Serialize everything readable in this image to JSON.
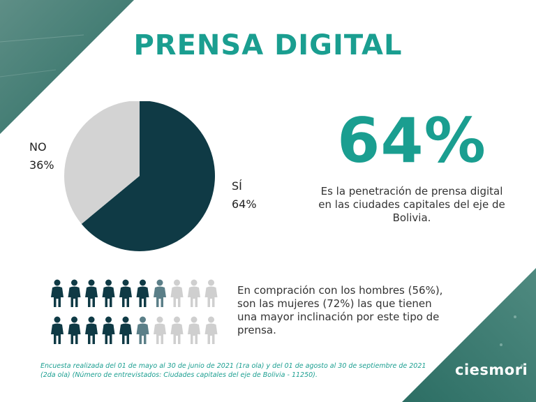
{
  "title": "PRENSA DIGITAL",
  "colors": {
    "accent": "#1a9e90",
    "dark": "#0f3a45",
    "light": "#cfcfcf",
    "mid": "#5b7f88",
    "corner": "#2c6e64"
  },
  "chart_data": {
    "type": "pie",
    "slices": [
      {
        "label": "SÍ",
        "value": 64,
        "value_label": "64%",
        "color": "#0f3a45"
      },
      {
        "label": "NO",
        "value": 36,
        "value_label": "36%",
        "color": "#d3d3d3"
      }
    ]
  },
  "stat": {
    "value": "64%",
    "description": "Es la penetración de prensa digital en las ciudades capitales del eje de Bolivia."
  },
  "people": {
    "row1": {
      "filled": 6.5,
      "total": 10
    },
    "row2": {
      "filled": 5.5,
      "total": 10
    }
  },
  "gender_text": "En compración con los hombres (56%), son las mujeres (72%) las que tienen una mayor inclinación por este tipo de prensa.",
  "footnote": "Encuesta realizada del  01 de mayo al 30 de junio de 2021 (1ra ola) y del 01 de agosto al 30 de  septiembre de 2021 (2da ola) (Número de entrevistados: Ciudades capitales del eje de Bolivia - 11250).",
  "brand": "ciesmori"
}
